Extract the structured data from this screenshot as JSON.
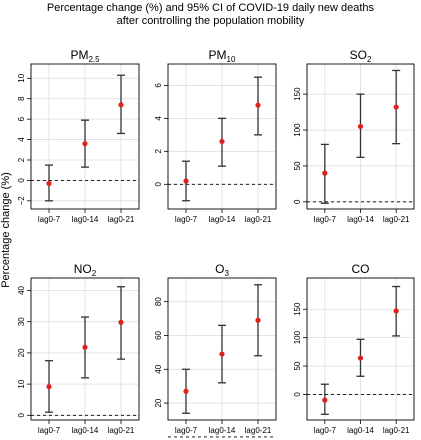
{
  "figure": {
    "title_lines": [
      "Percentage change (%) and 95% CI of COVID-19 daily new deaths",
      "after controlling the population mobility"
    ],
    "ylabel": "Percentage change (%)"
  },
  "colors": {
    "point": "#e0201b",
    "errorbar": "#333333",
    "grid": "#dddddd",
    "frame": "#000000"
  },
  "chart_data": [
    {
      "type": "scatter",
      "title_main": "PM",
      "title_sub": "2.5",
      "categories": [
        "lag0-7",
        "lag0-14",
        "lag0-21"
      ],
      "values": [
        -0.3,
        3.6,
        7.4
      ],
      "ci_low": [
        -2.0,
        1.3,
        4.6
      ],
      "ci_high": [
        1.5,
        5.9,
        10.3
      ],
      "ylim": [
        -2.8,
        11.4
      ],
      "yticks": [
        -2,
        0,
        2,
        4,
        6,
        8,
        10
      ],
      "reference_line": 0
    },
    {
      "type": "scatter",
      "title_main": "PM",
      "title_sub": "10",
      "categories": [
        "lag0-7",
        "lag0-14",
        "lag0-21"
      ],
      "values": [
        0.2,
        2.6,
        4.8
      ],
      "ci_low": [
        -1.0,
        1.1,
        3.0
      ],
      "ci_high": [
        1.4,
        4.0,
        6.5
      ],
      "ylim": [
        -1.5,
        7.3
      ],
      "yticks": [
        0,
        2,
        4,
        6
      ],
      "reference_line": 0
    },
    {
      "type": "scatter",
      "title_main": "SO",
      "title_sub": "2",
      "categories": [
        "lag0-7",
        "lag0-14",
        "lag0-21"
      ],
      "values": [
        40,
        105,
        132
      ],
      "ci_low": [
        -2,
        62,
        81
      ],
      "ci_high": [
        80,
        150,
        183
      ],
      "ylim": [
        -10,
        192
      ],
      "yticks": [
        0,
        50,
        100,
        150
      ],
      "reference_line": 0
    },
    {
      "type": "scatter",
      "title_main": "NO",
      "title_sub": "2",
      "categories": [
        "lag0-7",
        "lag0-14",
        "lag0-21"
      ],
      "values": [
        9.2,
        21.8,
        29.8
      ],
      "ci_low": [
        1.0,
        12.0,
        18.0
      ],
      "ci_high": [
        17.5,
        31.5,
        41.2
      ],
      "ylim": [
        -1.5,
        44
      ],
      "yticks": [
        0,
        10,
        20,
        30,
        40
      ],
      "reference_line": 0
    },
    {
      "type": "scatter",
      "title_main": "O",
      "title_sub": "3",
      "categories": [
        "lag0-7",
        "lag0-14",
        "lag0-21"
      ],
      "values": [
        27,
        49,
        69
      ],
      "ci_low": [
        14,
        32,
        48
      ],
      "ci_high": [
        40,
        66,
        90
      ],
      "ylim": [
        10,
        94
      ],
      "yticks": [
        20,
        40,
        60,
        80
      ],
      "reference_line": 0
    },
    {
      "type": "scatter",
      "title_main": "CO",
      "title_sub": "",
      "categories": [
        "lag0-7",
        "lag0-14",
        "lag0-21"
      ],
      "values": [
        -10,
        64,
        147
      ],
      "ci_low": [
        -35,
        32,
        103
      ],
      "ci_high": [
        18,
        97,
        190
      ],
      "ylim": [
        -45,
        205
      ],
      "yticks": [
        0,
        50,
        100,
        150
      ],
      "reference_line": 0
    }
  ]
}
